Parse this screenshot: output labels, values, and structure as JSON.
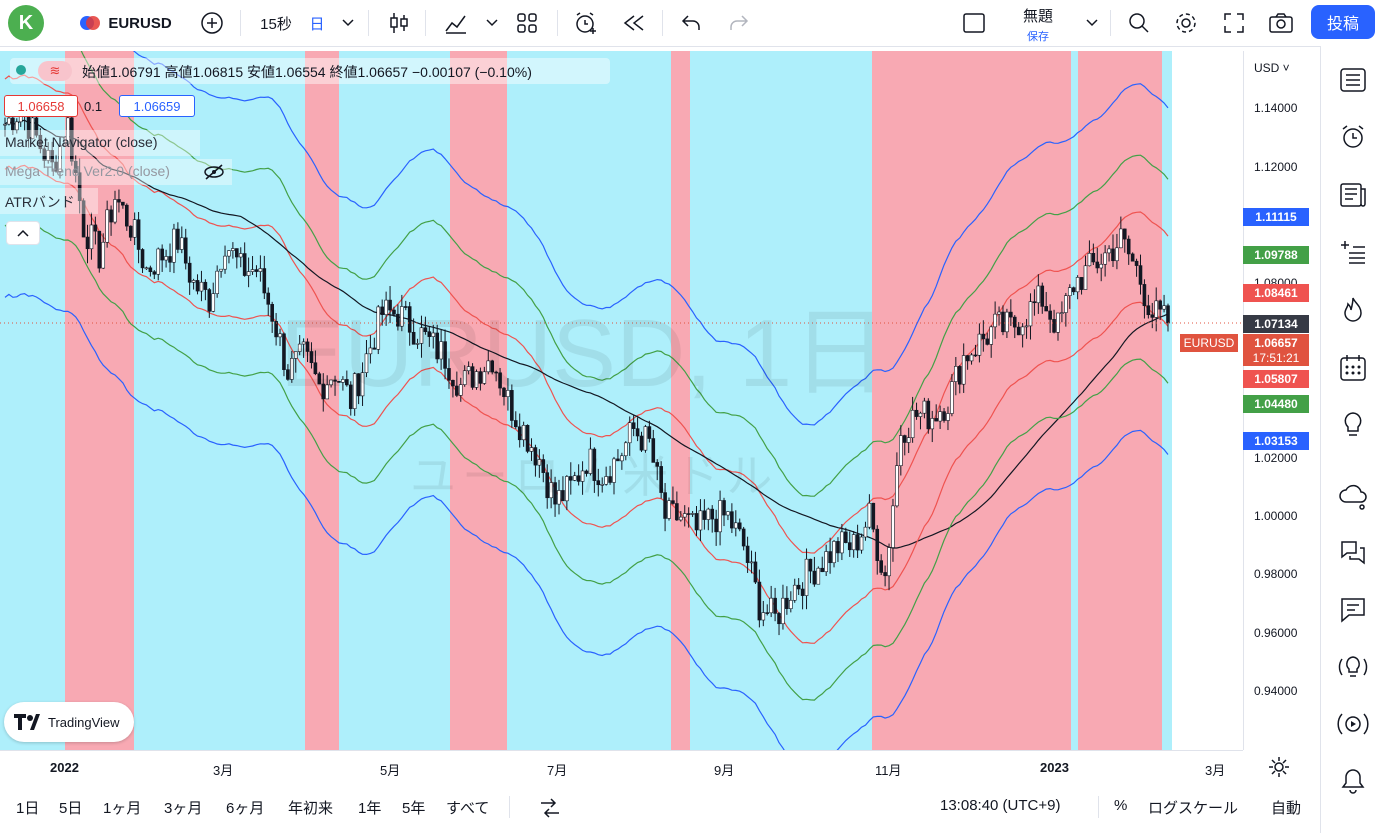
{
  "header": {
    "avatar": "K",
    "symbol": "EURUSD",
    "interval_15s": "15秒",
    "interval_day": "日",
    "layout_title": "無題",
    "layout_save": "保存",
    "publish": "投稿"
  },
  "legend": {
    "ohlc": "始値1.06791 高値1.06815 安値1.06554 終値1.06657 −0.00107 (−0.10%)",
    "bid": "1.06658",
    "spread": "0.1",
    "ask": "1.06659",
    "indicators": [
      "Market Navigator (close)",
      "Mega Trend Ver2.0 (close)",
      "ATRバンド"
    ]
  },
  "watermark": {
    "symbol": "EURUSD, 1日",
    "name": "ユーロ / 米ドル"
  },
  "tradingview_logo": "TradingView",
  "price_axis": {
    "currency": "USD",
    "labels": [
      "1.14000",
      "1.12000",
      "1.08000",
      "1.04000",
      "1.02000",
      "1.00000",
      "0.98000",
      "0.96000",
      "0.94000"
    ],
    "tags": [
      {
        "value": "1.11115",
        "color": "#2962ff"
      },
      {
        "value": "1.09788",
        "color": "#43a047"
      },
      {
        "value": "1.08461",
        "color": "#ef5350"
      },
      {
        "value": "1.07134",
        "color": "#363a45"
      },
      {
        "value": "1.06657",
        "color": "#e0533f"
      },
      {
        "value": "17:51:21",
        "color": "#e0533f"
      },
      {
        "value": "1.05807",
        "color": "#ef5350"
      },
      {
        "value": "1.04480",
        "color": "#43a047"
      },
      {
        "value": "1.03153",
        "color": "#2962ff"
      }
    ],
    "symbol_tag": "EURUSD"
  },
  "time_axis": [
    "2022",
    "3月",
    "5月",
    "7月",
    "9月",
    "11月",
    "2023",
    "3月"
  ],
  "bottom": {
    "periods": [
      "1日",
      "5日",
      "1ヶ月",
      "3ヶ月",
      "6ヶ月",
      "年初来",
      "1年",
      "5年",
      "すべて"
    ],
    "clock": "13:08:40 (UTC+9)",
    "percent": "%",
    "log": "ログスケール",
    "auto": "自動"
  },
  "colors": {
    "bull_zone": "#aeeffb",
    "bear_zone": "#f8a9b3",
    "upper_band": "#2962ff",
    "mid_band": "#43a047",
    "inner_band": "#ef5350",
    "center": "#131722"
  },
  "chart_data": {
    "type": "candlestick",
    "title": "EURUSD, 1日",
    "x_range": [
      "2022-01",
      "2023-03"
    ],
    "ylim": [
      0.92,
      1.165
    ],
    "close_series": [
      1.135,
      1.14,
      1.13,
      1.12,
      1.135,
      1.1,
      1.09,
      1.11,
      1.1,
      1.085,
      1.09,
      1.095,
      1.08,
      1.075,
      1.095,
      1.085,
      1.085,
      1.07,
      1.05,
      1.055,
      1.045,
      1.05,
      1.04,
      1.055,
      1.07,
      1.07,
      1.065,
      1.06,
      1.055,
      1.045,
      1.05,
      1.055,
      1.04,
      1.03,
      1.02,
      1.005,
      1.01,
      1.02,
      1.015,
      1.02,
      1.03,
      1.025,
      1.0,
      1.0,
      0.995,
      1.0,
      1.0,
      0.99,
      0.97,
      0.965,
      0.975,
      0.98,
      0.985,
      0.99,
      0.99,
      1.0,
      0.98,
      1.03,
      1.035,
      1.035,
      1.04,
      1.055,
      1.06,
      1.065,
      1.065,
      1.07,
      1.075,
      1.065,
      1.08,
      1.085,
      1.09,
      1.095,
      1.085,
      1.07,
      1.0666
    ]
  }
}
